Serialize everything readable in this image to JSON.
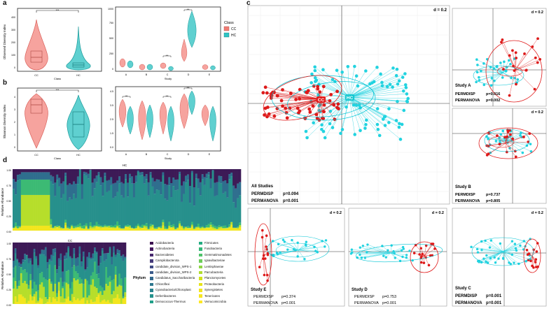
{
  "labels": {
    "a": "a",
    "b": "b",
    "c": "c",
    "d": "d"
  },
  "panel_a": {
    "ylabel": "Observed Diversity Index",
    "xlabel": "Class",
    "categories": [
      "CC",
      "HC"
    ],
    "sig": "***",
    "yticks": [
      "0",
      "100",
      "200",
      "300",
      "400"
    ]
  },
  "panel_a_study": {
    "xlabel": "Study",
    "studies": [
      "A",
      "B",
      "C",
      "D",
      "E"
    ],
    "yticks": [
      "0",
      "250",
      "500",
      "750",
      "1000"
    ],
    "sig": [
      "***",
      "***"
    ],
    "legend_title": "Class",
    "legend": [
      {
        "label": "CC",
        "color": "#f07c74"
      },
      {
        "label": "HC",
        "color": "#2ec4c4"
      }
    ]
  },
  "panel_b": {
    "ylabel": "Shannon Diversity Index",
    "xlabel": "Class",
    "categories": [
      "CC",
      "HC"
    ],
    "sig": "***",
    "yticks": [
      "0",
      "1",
      "2",
      "3",
      "4"
    ]
  },
  "panel_b_study": {
    "xlabel": "Study",
    "studies": [
      "A",
      "B",
      "C",
      "D",
      "E"
    ],
    "yticks": [
      "0.0",
      "1.5",
      "2.5",
      "3.5",
      "4.5"
    ],
    "sig": [
      "***",
      "***",
      "***"
    ]
  },
  "panel_c": {
    "d_label": "d = 0.2",
    "main": {
      "title": "All Studies",
      "centroid_cc": "CC",
      "centroid_hc": "HC",
      "stats": [
        {
          "name": "PERMDISP",
          "p": "p=0.094"
        },
        {
          "name": "PERMANOVA",
          "p": "p=0.001"
        }
      ]
    },
    "studyA": {
      "title": "Study A",
      "stats": [
        {
          "name": "PERMDISP",
          "p": "p=0.016"
        },
        {
          "name": "PERMANOVA",
          "p": "p=0.002"
        }
      ]
    },
    "studyB": {
      "title": "Study B",
      "stats": [
        {
          "name": "PERMDISP",
          "p": "p=0.737"
        },
        {
          "name": "PERMANOVA",
          "p": "p=0.805"
        }
      ]
    },
    "studyE": {
      "title": "Study E",
      "stats": [
        {
          "name": "PERMDISP",
          "p": "p=0.374"
        },
        {
          "name": "PERMANOVA",
          "p": "p=0.001"
        }
      ]
    },
    "studyD": {
      "title": "Study D",
      "stats": [
        {
          "name": "PERMDISP",
          "p": "p=0.753"
        },
        {
          "name": "PERMANOVA",
          "p": "p=0.001"
        }
      ]
    },
    "studyC": {
      "title": "Study C",
      "stats": [
        {
          "name": "PERMDISP",
          "p": "p=0.001"
        },
        {
          "name": "PERMANOVA",
          "p": "p=0.001"
        }
      ]
    }
  },
  "panel_d": {
    "hc_title": "HC",
    "cc_title": "CC",
    "ylabel": "Relative Abundance",
    "yticks": [
      "0.00",
      "0.25",
      "0.50",
      "0.75",
      "1.00"
    ],
    "legend_title": "Phylum",
    "phyla": [
      {
        "name": "Acidobacteria",
        "color": "#3b0f4f"
      },
      {
        "name": "Actinobacteria",
        "color": "#43185e"
      },
      {
        "name": "Bacteroidetes",
        "color": "#46286e"
      },
      {
        "name": "Campilobacterota",
        "color": "#453a7a"
      },
      {
        "name": "candidate_division_WPS-1",
        "color": "#404a84"
      },
      {
        "name": "candidate_division_WPS-2",
        "color": "#3a5a8a"
      },
      {
        "name": "Candidatus_Saccharibacteria",
        "color": "#33688d"
      },
      {
        "name": "Chloroflexi",
        "color": "#2d768e"
      },
      {
        "name": "Cyanobacteria/Chloroplast",
        "color": "#28838e"
      },
      {
        "name": "Deferribacteres",
        "color": "#23918c"
      },
      {
        "name": "Deinococcus-Thermus",
        "color": "#1f9f88"
      },
      {
        "name": "Firmicutes",
        "color": "#24ac82"
      },
      {
        "name": "Fusobacteria",
        "color": "#35b778"
      },
      {
        "name": "Gemmatimonadetes",
        "color": "#4ec36b"
      },
      {
        "name": "Ignavibacteriae",
        "color": "#6ccd5a"
      },
      {
        "name": "Lentisphaerae",
        "color": "#8dd645"
      },
      {
        "name": "Parcubacteria",
        "color": "#b0dd2f"
      },
      {
        "name": "Planctomycetes",
        "color": "#d2e21b"
      },
      {
        "name": "Proteobacteria",
        "color": "#e6e419"
      },
      {
        "name": "Synergistetes",
        "color": "#f2e51c"
      },
      {
        "name": "Tenericutes",
        "color": "#f7e620"
      },
      {
        "name": "Verrucomicrobia",
        "color": "#fde725"
      }
    ]
  }
}
